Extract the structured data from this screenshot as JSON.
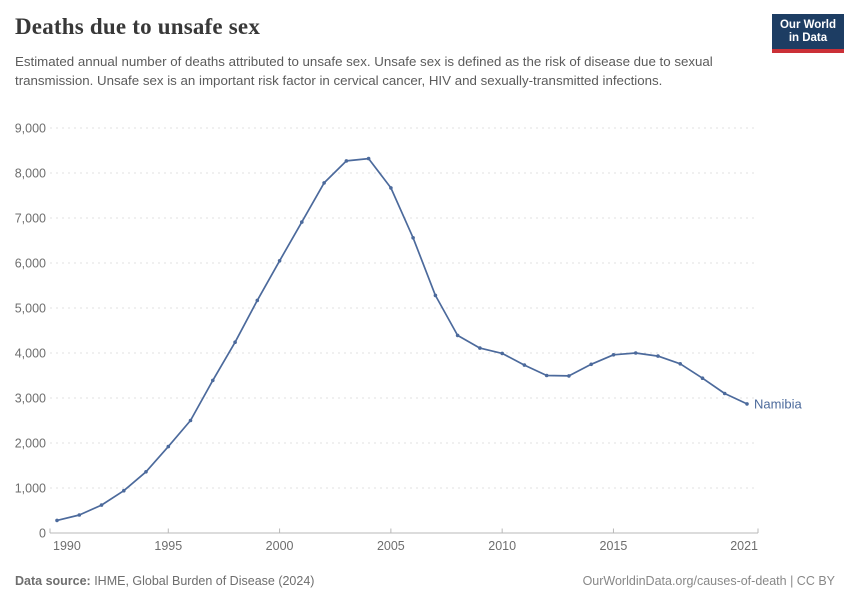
{
  "header": {
    "title": "Deaths due to unsafe sex",
    "subtitle": "Estimated annual number of deaths attributed to unsafe sex. Unsafe sex is defined as the risk of disease due to sexual transmission. Unsafe sex is an important risk factor in cervical cancer, HIV and sexually-transmitted infections."
  },
  "logo": {
    "line1": "Our World",
    "line2": "in Data",
    "bg_color": "#1d3d63",
    "accent_color": "#cb3037"
  },
  "chart_data": {
    "type": "line",
    "title": "Deaths due to unsafe sex",
    "entity_label": "Namibia",
    "xlabel": "",
    "ylabel": "",
    "xlim": [
      1990,
      2021
    ],
    "ylim": [
      0,
      9000
    ],
    "xticks": [
      1990,
      1995,
      2000,
      2005,
      2010,
      2015,
      2021
    ],
    "yticks": [
      0,
      1000,
      2000,
      3000,
      4000,
      5000,
      6000,
      7000,
      8000,
      9000
    ],
    "grid": "horizontal-dashed",
    "legend_position": "end-of-line",
    "line_color": "#4C6A9C",
    "x": [
      1990,
      1991,
      1992,
      1993,
      1994,
      1995,
      1996,
      1997,
      1998,
      1999,
      2000,
      2001,
      2002,
      2003,
      2004,
      2005,
      2006,
      2007,
      2008,
      2009,
      2010,
      2011,
      2012,
      2013,
      2014,
      2015,
      2016,
      2017,
      2018,
      2019,
      2020,
      2021
    ],
    "series": [
      {
        "name": "Namibia",
        "values": [
          280,
          400,
          620,
          940,
          1360,
          1920,
          2500,
          3390,
          4240,
          5170,
          6050,
          6910,
          7780,
          8270,
          8320,
          7670,
          6560,
          5280,
          4390,
          4110,
          3990,
          3730,
          3500,
          3490,
          3750,
          3960,
          4000,
          3930,
          3760,
          3440,
          3100,
          2870
        ]
      }
    ]
  },
  "footer": {
    "datasource_label": "Data source:",
    "datasource_value": " IHME, Global Burden of Disease (2024)",
    "credit": "OurWorldinData.org/causes-of-death | CC BY"
  }
}
